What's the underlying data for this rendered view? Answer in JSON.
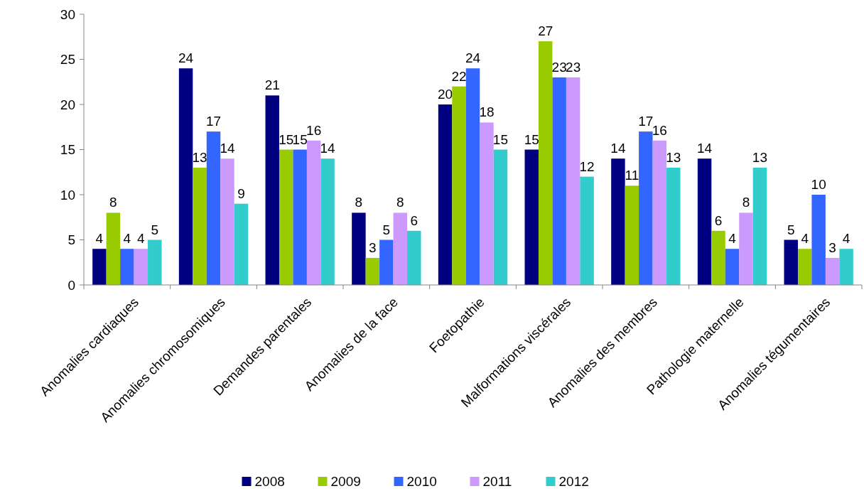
{
  "chart_data": {
    "type": "bar",
    "categories": [
      "Anomalies cardiaques",
      "Anomalies chromosomiques",
      "Demandes parentales",
      "Anomalies de la face",
      "Foetopathie",
      "Malformations viscérales",
      "Anomalies des membres",
      "Pathologie maternelle",
      "Anomalies tégumentaires"
    ],
    "series": [
      {
        "name": "2008",
        "color": "#000080",
        "values": [
          4,
          24,
          21,
          8,
          20,
          15,
          14,
          14,
          5
        ]
      },
      {
        "name": "2009",
        "color": "#99cc00",
        "values": [
          8,
          13,
          15,
          3,
          22,
          27,
          11,
          6,
          4
        ]
      },
      {
        "name": "2010",
        "color": "#3366ff",
        "values": [
          4,
          17,
          15,
          5,
          24,
          23,
          17,
          4,
          10
        ]
      },
      {
        "name": "2011",
        "color": "#cc99ff",
        "values": [
          4,
          14,
          16,
          8,
          18,
          23,
          16,
          8,
          3
        ]
      },
      {
        "name": "2012",
        "color": "#33cccc",
        "values": [
          5,
          9,
          14,
          6,
          15,
          12,
          13,
          13,
          4
        ]
      }
    ],
    "ylim": [
      0,
      30
    ],
    "yticks": [
      0,
      5,
      10,
      15,
      20,
      25,
      30
    ],
    "data_labels": true,
    "legend": "bottom",
    "grid": false
  }
}
